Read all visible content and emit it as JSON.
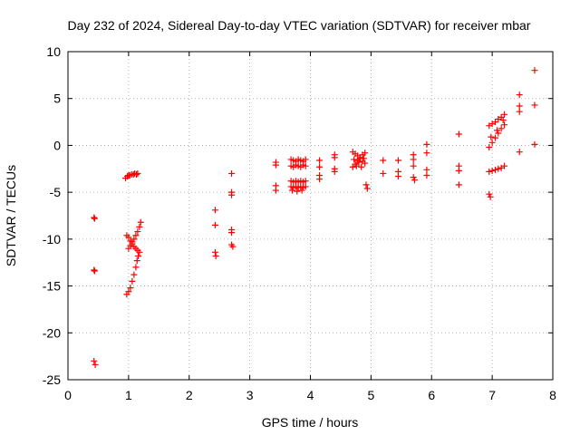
{
  "chart_data": {
    "type": "scatter",
    "title": "Day 232 of 2024, Sidereal Day-to-day VTEC variation (SDTVAR) for receiver mbar",
    "xlabel": "GPS time / hours",
    "ylabel": "SDTVAR / TECUs",
    "xlim": [
      0,
      8
    ],
    "ylim": [
      -25,
      10
    ],
    "xticks": [
      0,
      1,
      2,
      3,
      4,
      5,
      6,
      7,
      8
    ],
    "yticks": [
      -25,
      -20,
      -15,
      -10,
      -5,
      0,
      5,
      10
    ],
    "xtick_labels": [
      "0",
      "1",
      "2",
      "3",
      "4",
      "5",
      "6",
      "7",
      "8"
    ],
    "ytick_labels": [
      "-25",
      "-20",
      "-15",
      "-10",
      "-5",
      "0",
      "5",
      "10"
    ],
    "grid": true,
    "marker": "+",
    "series": [
      {
        "name": "SDTVAR",
        "color": "#ff0000",
        "points": [
          [
            0.43,
            -7.7
          ],
          [
            0.44,
            -7.8
          ],
          [
            0.43,
            -13.3
          ],
          [
            0.44,
            -13.4
          ],
          [
            0.43,
            -23.0
          ],
          [
            0.45,
            -23.4
          ],
          [
            0.95,
            -3.5
          ],
          [
            0.98,
            -3.3
          ],
          [
            1.0,
            -3.2
          ],
          [
            1.02,
            -3.2
          ],
          [
            1.05,
            -3.1
          ],
          [
            1.08,
            -3.1
          ],
          [
            1.1,
            -3.0
          ],
          [
            1.13,
            -3.1
          ],
          [
            1.15,
            -3.0
          ],
          [
            0.97,
            -9.6
          ],
          [
            1.0,
            -9.8
          ],
          [
            1.03,
            -10.2
          ],
          [
            1.06,
            -10.5
          ],
          [
            1.09,
            -10.8
          ],
          [
            1.12,
            -11.0
          ],
          [
            1.15,
            -11.2
          ],
          [
            1.18,
            -11.4
          ],
          [
            1.0,
            -11.0
          ],
          [
            1.03,
            -10.7
          ],
          [
            1.06,
            -10.3
          ],
          [
            1.09,
            -10.0
          ],
          [
            1.12,
            -9.6
          ],
          [
            1.15,
            -9.2
          ],
          [
            1.18,
            -8.7
          ],
          [
            1.2,
            -8.2
          ],
          [
            0.97,
            -15.9
          ],
          [
            1.0,
            -15.6
          ],
          [
            1.03,
            -15.2
          ],
          [
            1.06,
            -14.5
          ],
          [
            1.09,
            -13.8
          ],
          [
            1.12,
            -13.0
          ],
          [
            1.14,
            -12.3
          ],
          [
            1.16,
            -11.8
          ],
          [
            2.43,
            -6.9
          ],
          [
            2.43,
            -8.5
          ],
          [
            2.43,
            -11.4
          ],
          [
            2.44,
            -11.8
          ],
          [
            2.7,
            -3.0
          ],
          [
            2.7,
            -5.0
          ],
          [
            2.7,
            -5.3
          ],
          [
            2.7,
            -9.0
          ],
          [
            2.7,
            -9.3
          ],
          [
            2.7,
            -10.6
          ],
          [
            2.72,
            -10.8
          ],
          [
            3.43,
            -1.8
          ],
          [
            3.43,
            -2.1
          ],
          [
            3.43,
            -4.3
          ],
          [
            3.43,
            -4.8
          ],
          [
            3.68,
            -1.5
          ],
          [
            3.72,
            -1.6
          ],
          [
            3.76,
            -1.7
          ],
          [
            3.8,
            -1.5
          ],
          [
            3.84,
            -1.6
          ],
          [
            3.88,
            -1.7
          ],
          [
            3.92,
            -1.5
          ],
          [
            3.68,
            -2.2
          ],
          [
            3.72,
            -2.3
          ],
          [
            3.76,
            -2.1
          ],
          [
            3.8,
            -2.2
          ],
          [
            3.84,
            -2.3
          ],
          [
            3.88,
            -2.1
          ],
          [
            3.92,
            -2.2
          ],
          [
            3.68,
            -3.8
          ],
          [
            3.72,
            -3.9
          ],
          [
            3.76,
            -3.8
          ],
          [
            3.8,
            -3.9
          ],
          [
            3.84,
            -3.8
          ],
          [
            3.88,
            -3.9
          ],
          [
            3.92,
            -3.8
          ],
          [
            3.68,
            -4.4
          ],
          [
            3.72,
            -4.5
          ],
          [
            3.76,
            -4.4
          ],
          [
            3.8,
            -4.5
          ],
          [
            3.84,
            -4.4
          ],
          [
            3.88,
            -4.5
          ],
          [
            3.92,
            -4.4
          ],
          [
            3.7,
            -4.8
          ],
          [
            3.78,
            -4.9
          ],
          [
            3.86,
            -4.8
          ],
          [
            4.15,
            -1.6
          ],
          [
            4.15,
            -2.3
          ],
          [
            4.15,
            -3.2
          ],
          [
            4.15,
            -3.6
          ],
          [
            4.4,
            -1.0
          ],
          [
            4.4,
            -1.3
          ],
          [
            4.4,
            -2.5
          ],
          [
            4.4,
            -2.8
          ],
          [
            4.7,
            -0.7
          ],
          [
            4.74,
            -0.9
          ],
          [
            4.78,
            -1.1
          ],
          [
            4.82,
            -1.4
          ],
          [
            4.86,
            -1.7
          ],
          [
            4.9,
            -1.9
          ],
          [
            4.7,
            -2.3
          ],
          [
            4.74,
            -2.0
          ],
          [
            4.78,
            -1.6
          ],
          [
            4.82,
            -1.3
          ],
          [
            4.86,
            -1.0
          ],
          [
            4.9,
            -0.8
          ],
          [
            4.72,
            -1.5
          ],
          [
            4.8,
            -1.8
          ],
          [
            4.88,
            -1.4
          ],
          [
            4.76,
            -2.2
          ],
          [
            4.84,
            -2.3
          ],
          [
            4.92,
            -4.2
          ],
          [
            4.94,
            -4.6
          ],
          [
            5.2,
            -1.6
          ],
          [
            5.2,
            -3.0
          ],
          [
            5.45,
            -1.6
          ],
          [
            5.45,
            -2.8
          ],
          [
            5.45,
            -3.3
          ],
          [
            5.7,
            -1.0
          ],
          [
            5.7,
            -1.5
          ],
          [
            5.7,
            -2.2
          ],
          [
            5.7,
            -3.4
          ],
          [
            5.72,
            -3.7
          ],
          [
            5.92,
            0.1
          ],
          [
            5.92,
            -0.8
          ],
          [
            5.92,
            -2.6
          ],
          [
            5.92,
            -3.2
          ],
          [
            6.45,
            1.2
          ],
          [
            6.45,
            -2.2
          ],
          [
            6.45,
            -2.7
          ],
          [
            6.45,
            -4.2
          ],
          [
            6.95,
            -2.8
          ],
          [
            7.0,
            -2.7
          ],
          [
            7.05,
            -2.6
          ],
          [
            7.1,
            -2.5
          ],
          [
            7.15,
            -2.4
          ],
          [
            7.2,
            -2.2
          ],
          [
            6.95,
            -5.2
          ],
          [
            6.97,
            -5.5
          ],
          [
            6.95,
            -0.2
          ],
          [
            7.0,
            0.3
          ],
          [
            7.05,
            0.8
          ],
          [
            7.1,
            1.3
          ],
          [
            7.15,
            1.8
          ],
          [
            7.2,
            2.2
          ],
          [
            6.95,
            2.1
          ],
          [
            7.0,
            2.3
          ],
          [
            7.05,
            2.5
          ],
          [
            7.1,
            2.8
          ],
          [
            7.15,
            3.0
          ],
          [
            7.2,
            3.3
          ],
          [
            6.98,
            0.9
          ],
          [
            7.08,
            1.6
          ],
          [
            7.18,
            2.7
          ],
          [
            7.45,
            5.4
          ],
          [
            7.45,
            4.2
          ],
          [
            7.45,
            3.6
          ],
          [
            7.45,
            -0.7
          ],
          [
            7.7,
            8.0
          ],
          [
            7.7,
            4.3
          ],
          [
            7.7,
            0.1
          ]
        ]
      }
    ]
  }
}
